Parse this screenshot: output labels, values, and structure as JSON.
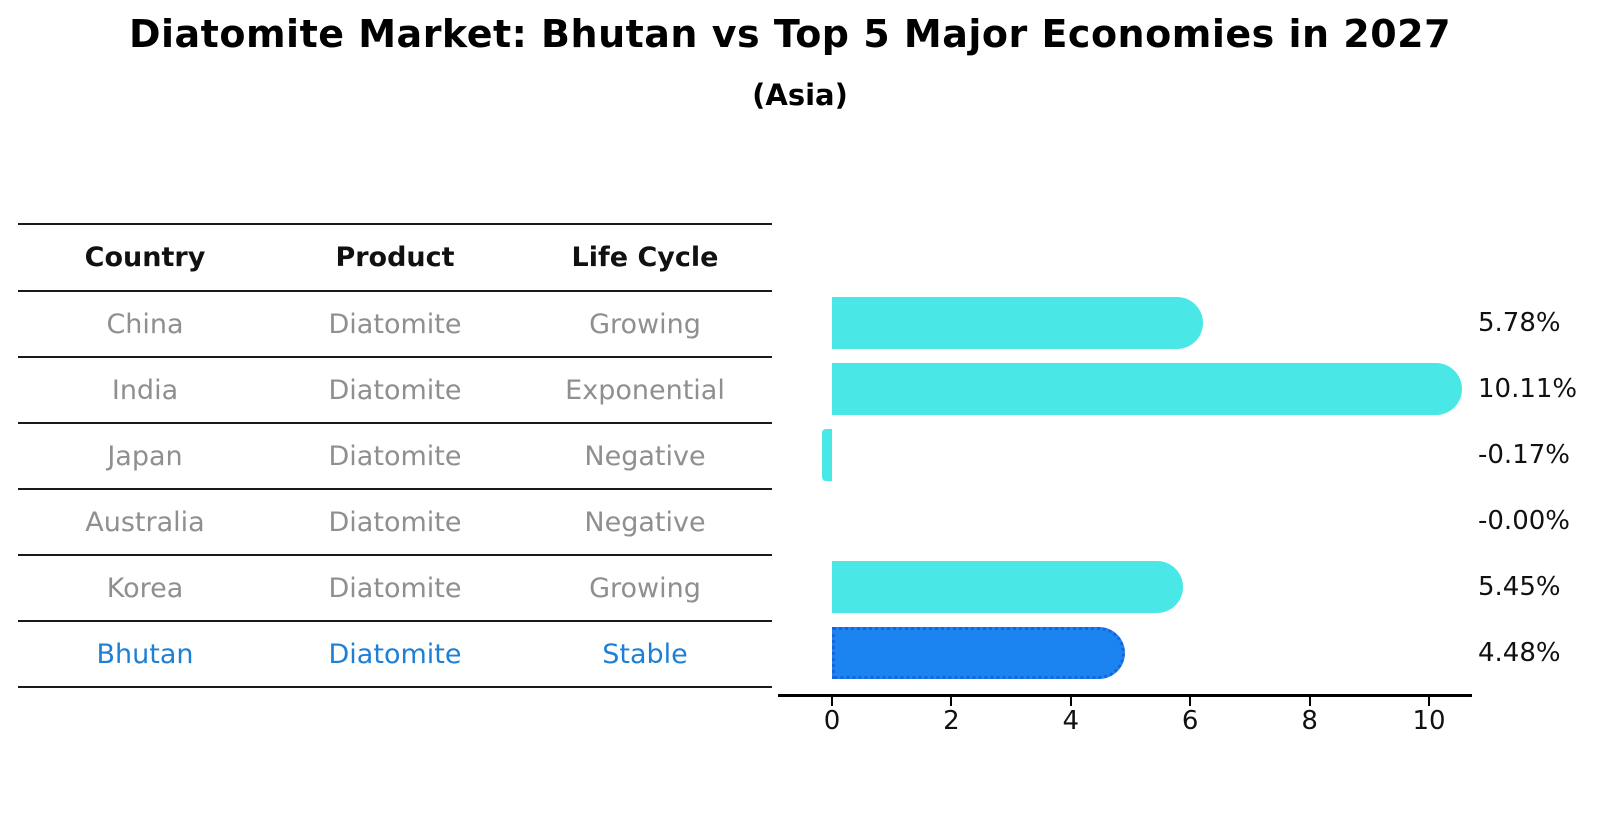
{
  "chart_data": {
    "type": "bar",
    "orientation": "horizontal",
    "title": "Diatomite Market: Bhutan vs Top 5 Major Economies in 2027",
    "subtitle": "(Asia)",
    "categories": [
      "China",
      "India",
      "Japan",
      "Australia",
      "Korea",
      "Bhutan"
    ],
    "values": [
      5.78,
      10.11,
      -0.17,
      -0.0,
      5.45,
      4.48
    ],
    "value_labels": [
      "5.78%",
      "10.11%",
      "-0.17%",
      "-0.00%",
      "5.45%",
      "4.48%"
    ],
    "xticks": [
      0,
      2,
      4,
      6,
      8,
      10
    ],
    "xtick_labels": [
      "0",
      "2",
      "4",
      "6",
      "8",
      "10"
    ],
    "xlim": [
      -0.9,
      10.7
    ],
    "grid": false,
    "legend": "none",
    "highlight_index": 5,
    "bar_color_default": "#49e8e6",
    "bar_color_highlight": "#1b84f0",
    "highlight_border_color": "#1566d8"
  },
  "table": {
    "headers": [
      "Country",
      "Product",
      "Life Cycle"
    ],
    "rows": [
      {
        "cells": [
          "China",
          "Diatomite",
          "Growing"
        ],
        "highlight": false
      },
      {
        "cells": [
          "India",
          "Diatomite",
          "Exponential"
        ],
        "highlight": false
      },
      {
        "cells": [
          "Japan",
          "Diatomite",
          "Negative"
        ],
        "highlight": false
      },
      {
        "cells": [
          "Australia",
          "Diatomite",
          "Negative"
        ],
        "highlight": false
      },
      {
        "cells": [
          "Korea",
          "Diatomite",
          "Growing"
        ],
        "highlight": false
      },
      {
        "cells": [
          "Bhutan",
          "Diatomite",
          "Stable"
        ],
        "highlight": true
      }
    ],
    "header_text_color": "#111111",
    "row_text_color": "#8f8f8f",
    "highlight_text_color": "#1e7fd6"
  }
}
